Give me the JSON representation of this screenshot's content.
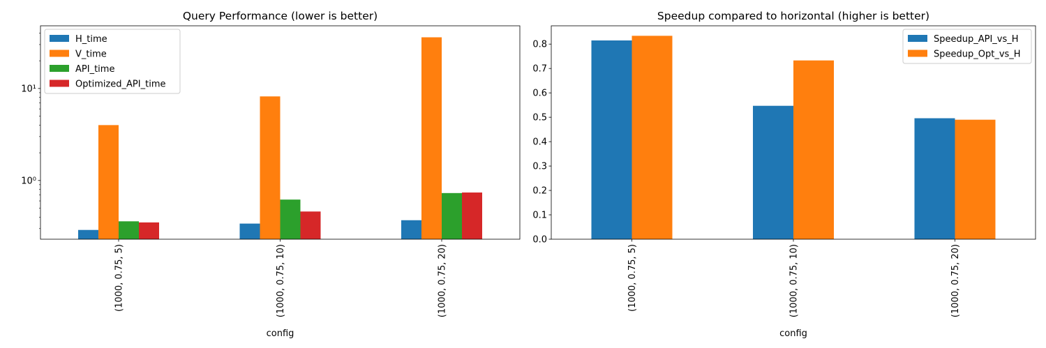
{
  "chart_data": [
    {
      "type": "bar",
      "title": "Query Performance (lower is better)",
      "xlabel": "config",
      "ylabel": "",
      "yscale": "log",
      "ylim": [
        0.23,
        48
      ],
      "yticks": [
        {
          "value": 1,
          "label": "10⁰"
        },
        {
          "value": 10,
          "label": "10¹"
        }
      ],
      "categories": [
        "(1000, 0.75, 5)",
        "(1000, 0.75, 10)",
        "(1000, 0.75, 20)"
      ],
      "series": [
        {
          "name": "H_time",
          "color": "#1f77b4",
          "values": [
            0.29,
            0.34,
            0.37
          ]
        },
        {
          "name": "V_time",
          "color": "#ff7f0e",
          "values": [
            4.0,
            8.2,
            36.0
          ]
        },
        {
          "name": "API_time",
          "color": "#2ca02c",
          "values": [
            0.36,
            0.62,
            0.73
          ]
        },
        {
          "name": "Optimized_API_time",
          "color": "#d62728",
          "values": [
            0.35,
            0.46,
            0.74
          ]
        }
      ],
      "legend": "top-left",
      "grid": false
    },
    {
      "type": "bar",
      "title": "Speedup compared to horizontal (higher is better)",
      "xlabel": "config",
      "ylabel": "",
      "yscale": "linear",
      "ylim": [
        0,
        0.875
      ],
      "yticks": [
        {
          "value": 0.0,
          "label": "0.0"
        },
        {
          "value": 0.1,
          "label": "0.1"
        },
        {
          "value": 0.2,
          "label": "0.2"
        },
        {
          "value": 0.3,
          "label": "0.3"
        },
        {
          "value": 0.4,
          "label": "0.4"
        },
        {
          "value": 0.5,
          "label": "0.5"
        },
        {
          "value": 0.6,
          "label": "0.6"
        },
        {
          "value": 0.7,
          "label": "0.7"
        },
        {
          "value": 0.8,
          "label": "0.8"
        }
      ],
      "categories": [
        "(1000, 0.75, 5)",
        "(1000, 0.75, 10)",
        "(1000, 0.75, 20)"
      ],
      "series": [
        {
          "name": "Speedup_API_vs_H",
          "color": "#1f77b4",
          "values": [
            0.815,
            0.547,
            0.496
          ]
        },
        {
          "name": "Speedup_Opt_vs_H",
          "color": "#ff7f0e",
          "values": [
            0.834,
            0.733,
            0.49
          ]
        }
      ],
      "legend": "top-right",
      "grid": false
    }
  ]
}
